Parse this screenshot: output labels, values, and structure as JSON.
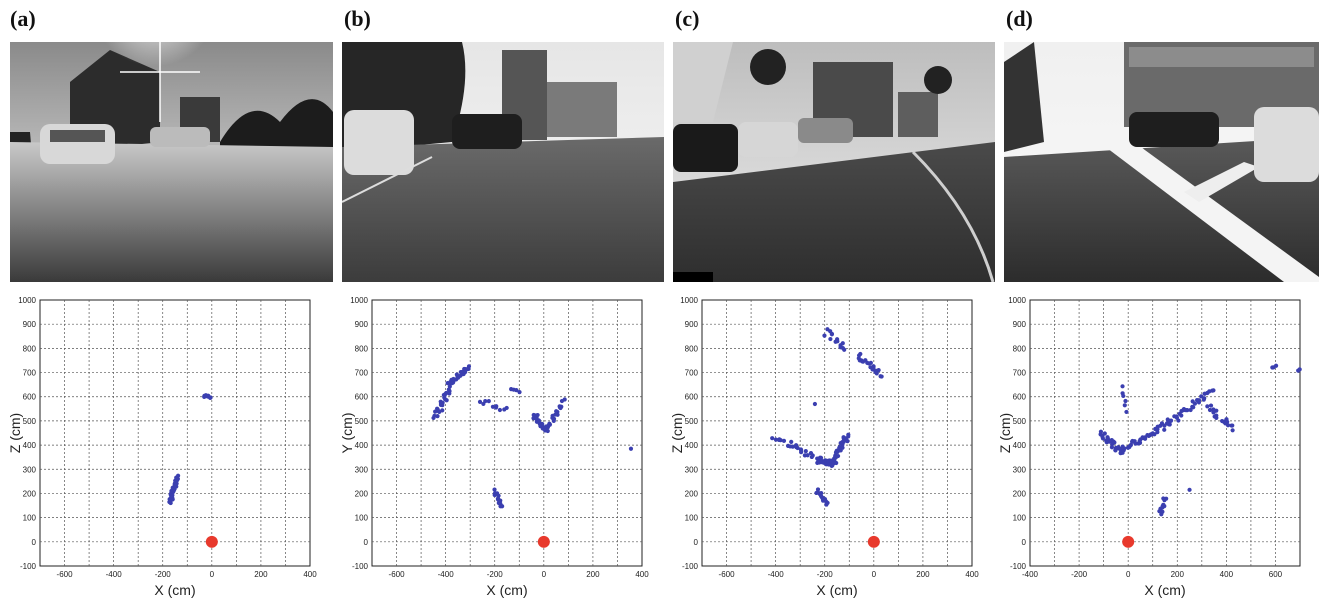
{
  "panels": [
    {
      "label": "(a)"
    },
    {
      "label": "(b)"
    },
    {
      "label": "(c)"
    },
    {
      "label": "(d)"
    }
  ],
  "colors": {
    "points": "#3b3fb0",
    "origin": "#e8392c",
    "grid": "#555555"
  },
  "chart_data": [
    {
      "type": "scatter",
      "xlabel": "X (cm)",
      "ylabel": "Z (cm)",
      "xlim": [
        -700,
        400
      ],
      "ylim": [
        -100,
        1000
      ],
      "xticks": [
        "-600",
        "-400",
        "-200",
        "0",
        "200",
        "400"
      ],
      "yticks": [
        "-100",
        "0",
        "100",
        "200",
        "300",
        "400",
        "500",
        "600",
        "700",
        "800",
        "900",
        "1000"
      ],
      "grid": true,
      "origin_marker": [
        0,
        0
      ],
      "clusters": [
        {
          "x0": -30,
          "y0": 603,
          "x1": -5,
          "y1": 600,
          "n": 8,
          "jitter": 6
        },
        {
          "x0": -170,
          "y0": 165,
          "x1": -140,
          "y1": 270,
          "n": 36,
          "jitter": 7
        }
      ]
    },
    {
      "type": "scatter",
      "xlabel": "X (cm)",
      "ylabel": "Y (cm)",
      "xlim": [
        -700,
        400
      ],
      "ylim": [
        -100,
        1000
      ],
      "xticks": [
        "-600",
        "-400",
        "-200",
        "0",
        "200",
        "400"
      ],
      "yticks": [
        "-100",
        "0",
        "100",
        "200",
        "300",
        "400",
        "500",
        "600",
        "700",
        "800",
        "900",
        "1000"
      ],
      "grid": true,
      "origin_marker": [
        0,
        0
      ],
      "clusters": [
        {
          "x0": -440,
          "y0": 510,
          "x1": -380,
          "y1": 650,
          "n": 26,
          "jitter": 12
        },
        {
          "x0": -380,
          "y0": 650,
          "x1": -310,
          "y1": 720,
          "n": 24,
          "jitter": 10
        },
        {
          "x0": -260,
          "y0": 580,
          "x1": -150,
          "y1": 550,
          "n": 10,
          "jitter": 12
        },
        {
          "x0": -130,
          "y0": 630,
          "x1": -100,
          "y1": 620,
          "n": 4,
          "jitter": 5
        },
        {
          "x0": -40,
          "y0": 530,
          "x1": 10,
          "y1": 460,
          "n": 20,
          "jitter": 12
        },
        {
          "x0": 10,
          "y0": 460,
          "x1": 80,
          "y1": 580,
          "n": 20,
          "jitter": 10
        },
        {
          "x0": -200,
          "y0": 210,
          "x1": -170,
          "y1": 150,
          "n": 18,
          "jitter": 8
        },
        {
          "x0": 355,
          "y0": 385,
          "x1": 358,
          "y1": 388,
          "n": 1,
          "jitter": 0
        }
      ]
    },
    {
      "type": "scatter",
      "xlabel": "X (cm)",
      "ylabel": "Z (cm)",
      "xlim": [
        -700,
        400
      ],
      "ylim": [
        -100,
        1000
      ],
      "xticks": [
        "-600",
        "-400",
        "-200",
        "0",
        "200",
        "400"
      ],
      "yticks": [
        "-100",
        "0",
        "100",
        "200",
        "300",
        "400",
        "500",
        "600",
        "700",
        "800",
        "900",
        "1000"
      ],
      "grid": true,
      "origin_marker": [
        0,
        0
      ],
      "clusters": [
        {
          "x0": -200,
          "y0": 870,
          "x1": -110,
          "y1": 800,
          "n": 14,
          "jitter": 12
        },
        {
          "x0": -60,
          "y0": 770,
          "x1": 30,
          "y1": 690,
          "n": 22,
          "jitter": 12
        },
        {
          "x0": -400,
          "y0": 430,
          "x1": -220,
          "y1": 340,
          "n": 26,
          "jitter": 14
        },
        {
          "x0": -220,
          "y0": 340,
          "x1": -170,
          "y1": 320,
          "n": 30,
          "jitter": 10
        },
        {
          "x0": -170,
          "y0": 320,
          "x1": -110,
          "y1": 440,
          "n": 36,
          "jitter": 10
        },
        {
          "x0": -230,
          "y0": 210,
          "x1": -190,
          "y1": 160,
          "n": 16,
          "jitter": 8
        },
        {
          "x0": -240,
          "y0": 570,
          "x1": -240,
          "y1": 570,
          "n": 1,
          "jitter": 0
        }
      ]
    },
    {
      "type": "scatter",
      "xlabel": "X (cm)",
      "ylabel": "Z (cm)",
      "xlim": [
        -400,
        700
      ],
      "ylim": [
        -100,
        1000
      ],
      "xticks": [
        "-400",
        "-200",
        "0",
        "200",
        "400",
        "600"
      ],
      "yticks": [
        "-100",
        "0",
        "100",
        "200",
        "300",
        "400",
        "500",
        "600",
        "700",
        "800",
        "900",
        "1000"
      ],
      "grid": true,
      "origin_marker": [
        0,
        0
      ],
      "clusters": [
        {
          "x0": -110,
          "y0": 450,
          "x1": -30,
          "y1": 370,
          "n": 30,
          "jitter": 12
        },
        {
          "x0": -30,
          "y0": 380,
          "x1": 120,
          "y1": 460,
          "n": 30,
          "jitter": 10
        },
        {
          "x0": 120,
          "y0": 460,
          "x1": 340,
          "y1": 620,
          "n": 40,
          "jitter": 12
        },
        {
          "x0": 330,
          "y0": 560,
          "x1": 420,
          "y1": 470,
          "n": 22,
          "jitter": 14
        },
        {
          "x0": -20,
          "y0": 640,
          "x1": -10,
          "y1": 540,
          "n": 6,
          "jitter": 6
        },
        {
          "x0": 130,
          "y0": 110,
          "x1": 150,
          "y1": 180,
          "n": 12,
          "jitter": 8
        },
        {
          "x0": 590,
          "y0": 720,
          "x1": 600,
          "y1": 730,
          "n": 3,
          "jitter": 4
        },
        {
          "x0": 690,
          "y0": 710,
          "x1": 700,
          "y1": 715,
          "n": 2,
          "jitter": 3
        },
        {
          "x0": 250,
          "y0": 215,
          "x1": 250,
          "y1": 215,
          "n": 1,
          "jitter": 0
        }
      ]
    }
  ]
}
